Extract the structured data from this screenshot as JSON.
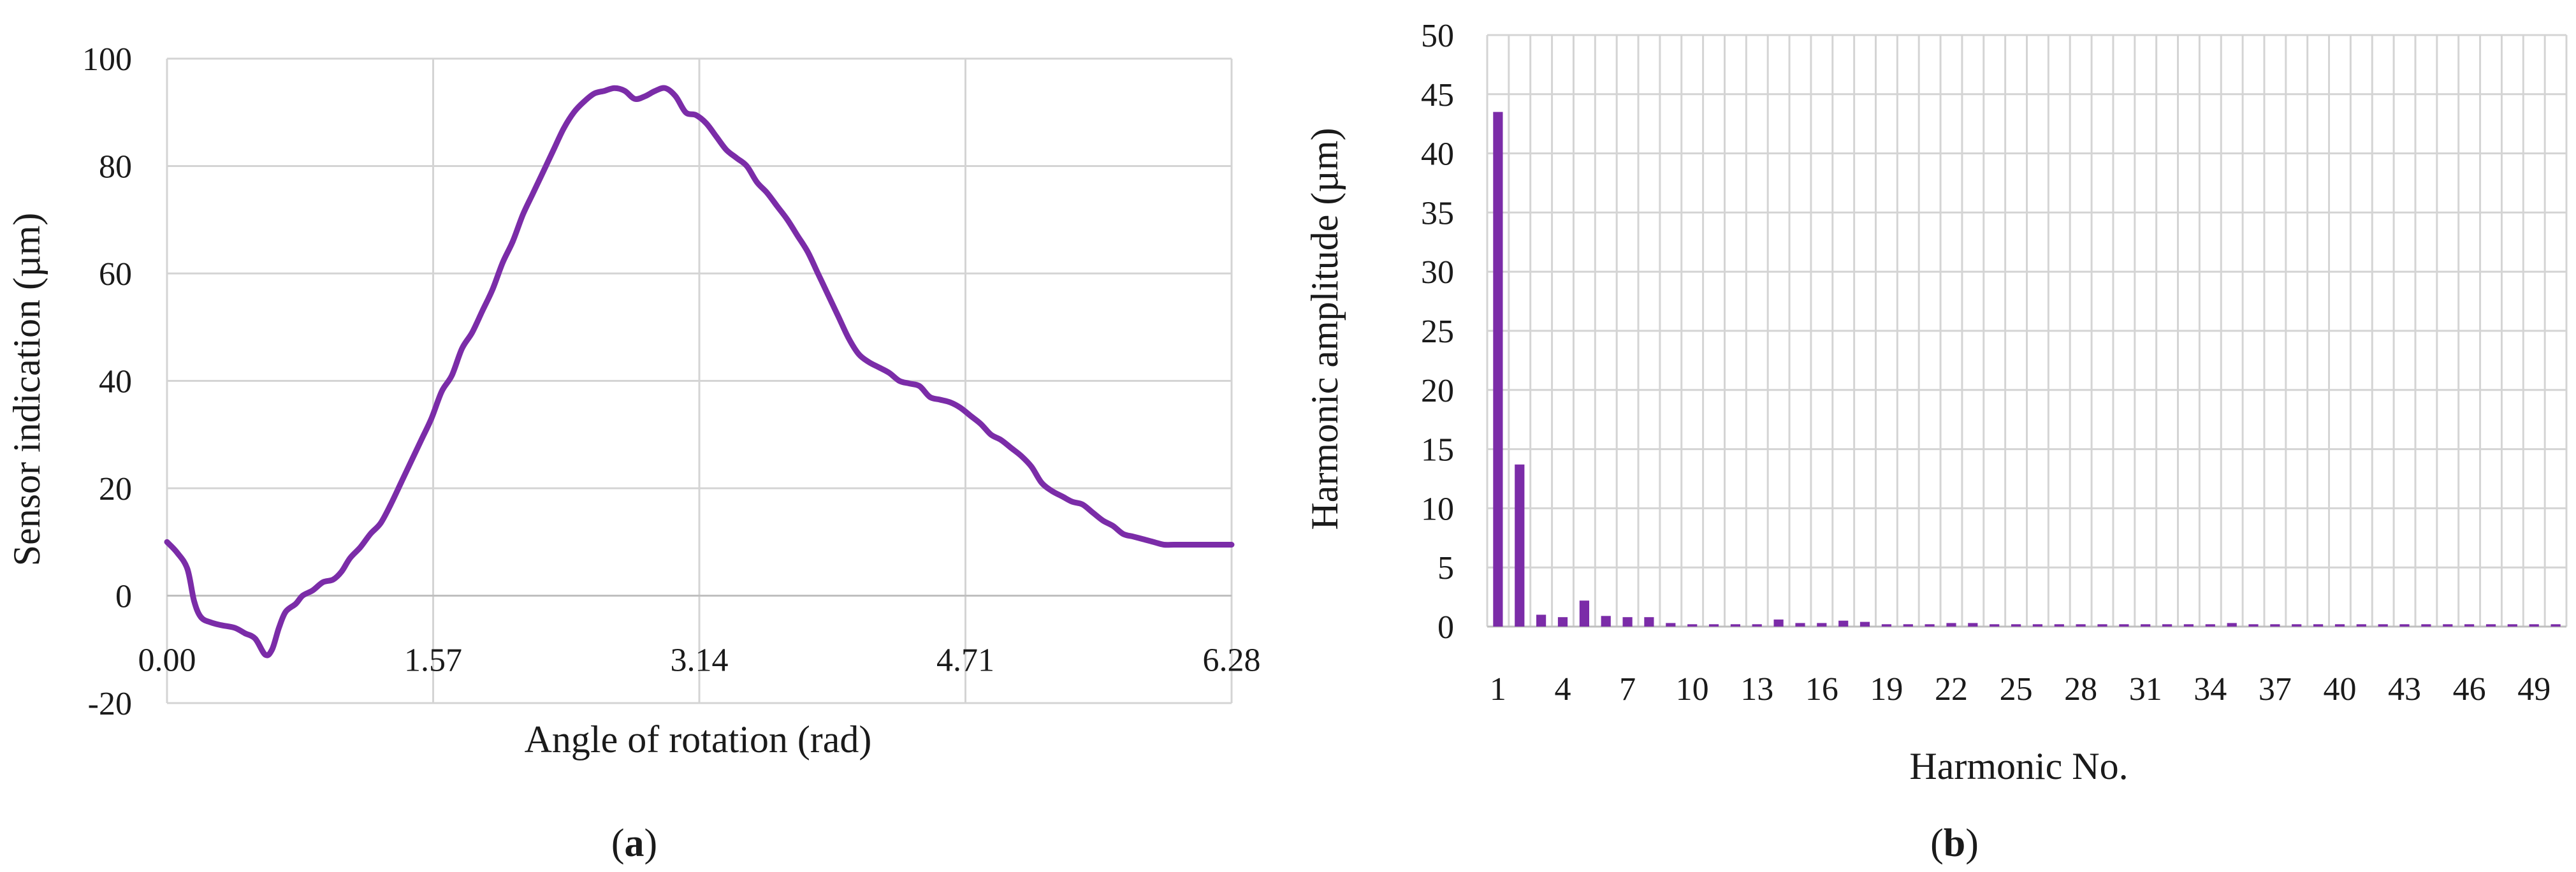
{
  "chart_data": [
    {
      "type": "line",
      "panel_label": "a",
      "xlabel": "Angle of rotation (rad)",
      "ylabel": "Sensor indication (µm)",
      "xlim": [
        0,
        6.28
      ],
      "ylim": [
        -20,
        100
      ],
      "x_ticks": [
        "0.00",
        "1.57",
        "3.14",
        "4.71",
        "6.28"
      ],
      "y_ticks": [
        "-20",
        "0",
        "20",
        "40",
        "60",
        "80",
        "100"
      ],
      "grid": true,
      "line_color": "#7B2CA8",
      "series": [
        {
          "x": [
            0.0,
            0.06,
            0.12,
            0.16,
            0.2,
            0.26,
            0.32,
            0.4,
            0.46,
            0.52,
            0.58,
            0.62,
            0.66,
            0.7,
            0.76,
            0.8,
            0.86,
            0.92,
            0.98,
            1.03,
            1.08,
            1.14,
            1.2,
            1.26,
            1.32,
            1.38,
            1.44,
            1.5,
            1.56,
            1.62,
            1.68,
            1.74,
            1.8,
            1.86,
            1.92,
            1.98,
            2.04,
            2.1,
            2.16,
            2.22,
            2.28,
            2.34,
            2.4,
            2.46,
            2.52,
            2.58,
            2.64,
            2.7,
            2.76,
            2.82,
            2.88,
            2.94,
            3.0,
            3.06,
            3.12,
            3.18,
            3.24,
            3.3,
            3.36,
            3.42,
            3.48,
            3.54,
            3.6,
            3.66,
            3.72,
            3.78,
            3.84,
            3.9,
            3.96,
            4.02,
            4.08,
            4.14,
            4.2,
            4.26,
            4.32,
            4.38,
            4.44,
            4.5,
            4.56,
            4.62,
            4.68,
            4.74,
            4.8,
            4.86,
            4.92,
            4.98,
            5.04,
            5.1,
            5.16,
            5.22,
            5.28,
            5.34,
            5.4,
            5.46,
            5.52,
            5.58,
            5.64,
            5.7,
            5.76,
            5.82,
            5.88,
            5.94,
            6.0,
            6.06,
            6.12,
            6.18,
            6.24,
            6.28
          ],
          "y": [
            10,
            8,
            5,
            -1,
            -4,
            -5,
            -5.5,
            -6,
            -7,
            -8,
            -11,
            -10,
            -6,
            -3,
            -1.5,
            0,
            1,
            2.5,
            3,
            4.5,
            7,
            9,
            11.5,
            13.5,
            17,
            21,
            25,
            29,
            33,
            38,
            41,
            46,
            49,
            53,
            57,
            62,
            66,
            71,
            75,
            79,
            83,
            87,
            90,
            92,
            93.5,
            94,
            94.5,
            94,
            92.5,
            93,
            94,
            94.5,
            93,
            90,
            89.5,
            88,
            85.5,
            83,
            81.5,
            80,
            77,
            75,
            72.5,
            70,
            67,
            64,
            60,
            56,
            52,
            48,
            45,
            43.5,
            42.5,
            41.5,
            40,
            39.5,
            39,
            37,
            36.5,
            36,
            35,
            33.5,
            32,
            30,
            29,
            27.5,
            26,
            24,
            21,
            19.5,
            18.5,
            17.5,
            17,
            15.5,
            14,
            13,
            11.5,
            11,
            10.5,
            10,
            9.5,
            9.5,
            9.5,
            9.5,
            9.5,
            9.5,
            9.5,
            9.5
          ]
        }
      ]
    },
    {
      "type": "bar",
      "panel_label": "b",
      "xlabel": "Harmonic No.",
      "ylabel": "Harmonic amplitude (µm)",
      "ylim": [
        0,
        50
      ],
      "x_ticks": [
        "1",
        "4",
        "7",
        "10",
        "13",
        "16",
        "19",
        "22",
        "25",
        "28",
        "31",
        "34",
        "37",
        "40",
        "43",
        "46",
        "49"
      ],
      "y_ticks": [
        "0",
        "5",
        "10",
        "15",
        "20",
        "25",
        "30",
        "35",
        "40",
        "45",
        "50"
      ],
      "grid": true,
      "bar_color": "#7B2CA8",
      "categories": [
        1,
        2,
        3,
        4,
        5,
        6,
        7,
        8,
        9,
        10,
        11,
        12,
        13,
        14,
        15,
        16,
        17,
        18,
        19,
        20,
        21,
        22,
        23,
        24,
        25,
        26,
        27,
        28,
        29,
        30,
        31,
        32,
        33,
        34,
        35,
        36,
        37,
        38,
        39,
        40,
        41,
        42,
        43,
        44,
        45,
        46,
        47,
        48,
        49,
        50
      ],
      "values": [
        43.5,
        13.7,
        1.0,
        0.8,
        2.2,
        0.9,
        0.8,
        0.8,
        0.3,
        0.2,
        0.2,
        0.2,
        0.2,
        0.6,
        0.3,
        0.3,
        0.5,
        0.4,
        0.2,
        0.2,
        0.2,
        0.3,
        0.3,
        0.2,
        0.2,
        0.2,
        0.2,
        0.2,
        0.2,
        0.2,
        0.2,
        0.2,
        0.2,
        0.2,
        0.3,
        0.2,
        0.2,
        0.2,
        0.2,
        0.2,
        0.2,
        0.2,
        0.2,
        0.2,
        0.2,
        0.2,
        0.2,
        0.2,
        0.2,
        0.2
      ]
    }
  ]
}
